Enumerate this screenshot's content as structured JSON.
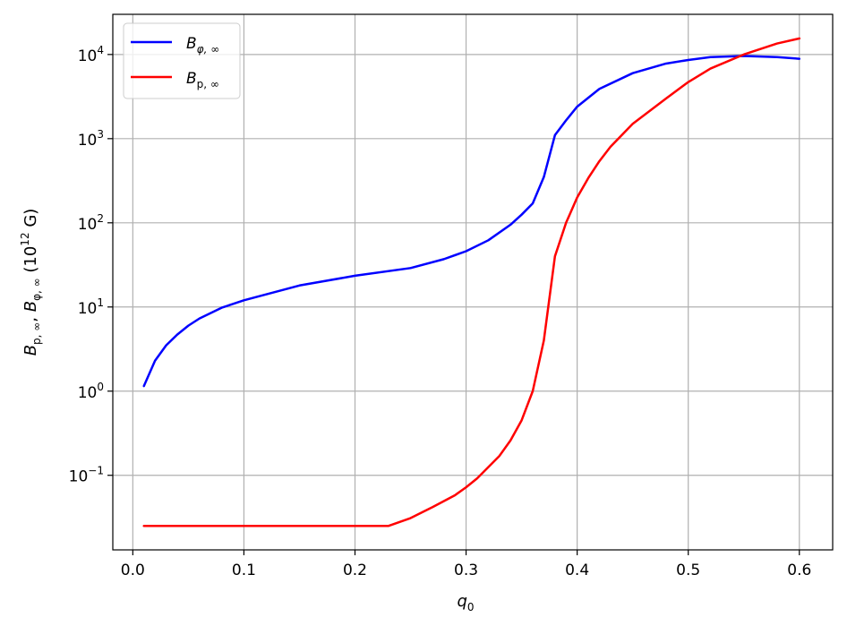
{
  "chart_data": {
    "type": "line",
    "xlabel": "q",
    "xlabel_sub": "0",
    "ylabel": "B_{p,∞}, B_{φ,∞} (10^12 G)",
    "ylabel_parts": {
      "b1": "B",
      "b1_sub": "p, ∞",
      "sep": ", ",
      "b2": "B",
      "b2_sub": "φ, ∞",
      "unit_pre": " (10",
      "unit_exp": "12",
      "unit_post": " G)"
    },
    "xlim": [
      -0.018,
      0.63
    ],
    "ylim": [
      0.013,
      30000
    ],
    "yscale": "log",
    "grid": true,
    "legend_position": "top-left",
    "x_ticks": [
      {
        "value": 0.0,
        "label": "0.0"
      },
      {
        "value": 0.1,
        "label": "0.1"
      },
      {
        "value": 0.2,
        "label": "0.2"
      },
      {
        "value": 0.3,
        "label": "0.3"
      },
      {
        "value": 0.4,
        "label": "0.4"
      },
      {
        "value": 0.5,
        "label": "0.5"
      },
      {
        "value": 0.6,
        "label": "0.6"
      }
    ],
    "y_ticks": [
      {
        "value": 0.1,
        "base": "10",
        "exp": "−1"
      },
      {
        "value": 1,
        "base": "10",
        "exp": "0"
      },
      {
        "value": 10,
        "base": "10",
        "exp": "1"
      },
      {
        "value": 100,
        "base": "10",
        "exp": "2"
      },
      {
        "value": 1000,
        "base": "10",
        "exp": "3"
      },
      {
        "value": 10000,
        "base": "10",
        "exp": "4"
      }
    ],
    "series": [
      {
        "name": "B_{φ,∞}",
        "legend_main": "B",
        "legend_sub": "φ, ∞",
        "color": "#0000ff",
        "x": [
          0.01,
          0.02,
          0.03,
          0.04,
          0.05,
          0.06,
          0.08,
          0.1,
          0.15,
          0.2,
          0.25,
          0.28,
          0.3,
          0.32,
          0.34,
          0.35,
          0.36,
          0.37,
          0.38,
          0.39,
          0.4,
          0.42,
          0.45,
          0.48,
          0.5,
          0.52,
          0.55,
          0.58,
          0.6
        ],
        "y": [
          1.15,
          2.3,
          3.5,
          4.7,
          6.0,
          7.3,
          9.8,
          12.0,
          18.0,
          23.5,
          29.0,
          37.0,
          46.0,
          62.0,
          95.0,
          125.0,
          170.0,
          350.0,
          1100.0,
          1650.0,
          2400.0,
          3900.0,
          6000.0,
          7800.0,
          8600.0,
          9300.0,
          9600.0,
          9300.0,
          8900.0
        ]
      },
      {
        "name": "B_{p,∞}",
        "legend_main": "B",
        "legend_sub": "p, ∞",
        "color": "#ff0000",
        "x": [
          0.01,
          0.05,
          0.1,
          0.15,
          0.2,
          0.23,
          0.25,
          0.27,
          0.29,
          0.3,
          0.31,
          0.32,
          0.33,
          0.34,
          0.35,
          0.36,
          0.37,
          0.38,
          0.39,
          0.4,
          0.41,
          0.42,
          0.43,
          0.45,
          0.48,
          0.5,
          0.52,
          0.55,
          0.58,
          0.6
        ],
        "y": [
          0.025,
          0.025,
          0.025,
          0.025,
          0.025,
          0.025,
          0.031,
          0.042,
          0.058,
          0.072,
          0.092,
          0.125,
          0.17,
          0.26,
          0.45,
          1.0,
          4.0,
          40.0,
          100.0,
          200.0,
          340.0,
          540.0,
          800.0,
          1500.0,
          3000.0,
          4700.0,
          6800.0,
          10000.0,
          13500.0,
          15500.0
        ]
      }
    ]
  }
}
